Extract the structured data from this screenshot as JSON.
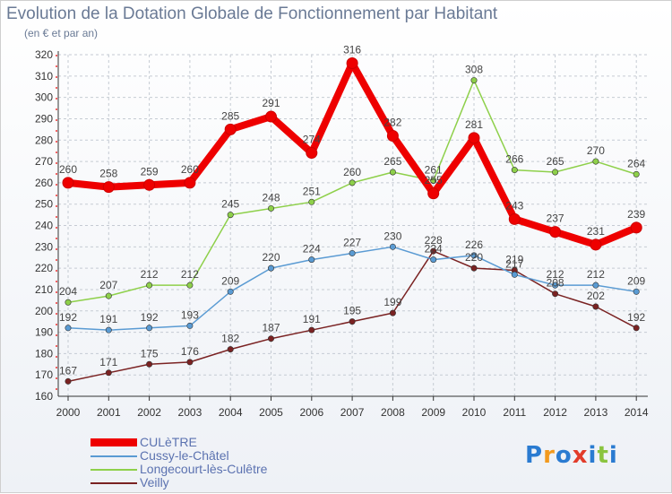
{
  "header": {
    "title": "Evolution de la Dotation Globale de Fonctionnement par Habitant",
    "subtitle": "(en € et par an)"
  },
  "logo": {
    "text": "Proxiti"
  },
  "colors": {
    "CULèTRE": "#ee0000",
    "Cussy-le-Châtel": "#5a9bd3",
    "Longecourt-lès-Culêtre": "#8ed04a",
    "Veilly": "#7a2222",
    "grid": "#c5cbd3",
    "axis": "#333333"
  },
  "chart_data": {
    "type": "line",
    "x": [
      "2000",
      "2001",
      "2002",
      "2003",
      "2004",
      "2005",
      "2006",
      "2007",
      "2008",
      "2009",
      "2010",
      "2011",
      "2012",
      "2013",
      "2014"
    ],
    "ylim": [
      160,
      320
    ],
    "y_ticks": [
      160,
      170,
      180,
      190,
      200,
      210,
      220,
      230,
      240,
      250,
      260,
      270,
      280,
      290,
      300,
      310,
      320
    ],
    "grid": true,
    "legend_position": "bottom-left",
    "series": [
      {
        "name": "CULèTRE",
        "values": [
          260,
          258,
          259,
          260,
          285,
          291,
          274,
          316,
          282,
          255,
          281,
          243,
          237,
          231,
          239
        ],
        "labels": [
          "260",
          "258",
          "259",
          "260",
          "285",
          "291",
          "274",
          "316",
          "282",
          "255",
          "281",
          "243",
          "237",
          "231",
          "239"
        ]
      },
      {
        "name": "Cussy-le-Châtel",
        "values": [
          192,
          191,
          192,
          193,
          209,
          220,
          224,
          227,
          230,
          224,
          226,
          217,
          212,
          212,
          209
        ],
        "labels": [
          "192",
          "191",
          "192",
          "193",
          "209",
          "220",
          "224",
          "227",
          "230",
          "224",
          "226",
          "217",
          "212",
          "212",
          "209"
        ]
      },
      {
        "name": "Longecourt-lès-Culêtre",
        "values": [
          204,
          207,
          212,
          212,
          245,
          248,
          251,
          260,
          265,
          261,
          308,
          266,
          265,
          270,
          264
        ],
        "labels": [
          "204",
          "207",
          "212",
          "212",
          "245",
          "248",
          "251",
          "260",
          "265",
          "261",
          "308",
          "266",
          "265",
          "270",
          "264"
        ]
      },
      {
        "name": "Veilly",
        "values": [
          167,
          171,
          175,
          176,
          182,
          187,
          191,
          195,
          199,
          228,
          220,
          219,
          208,
          202,
          192
        ],
        "labels": [
          "167",
          "171",
          "175",
          "176",
          "182",
          "187",
          "191",
          "195",
          "199",
          "228",
          "220",
          "219",
          "208",
          "202",
          "192"
        ]
      }
    ]
  }
}
